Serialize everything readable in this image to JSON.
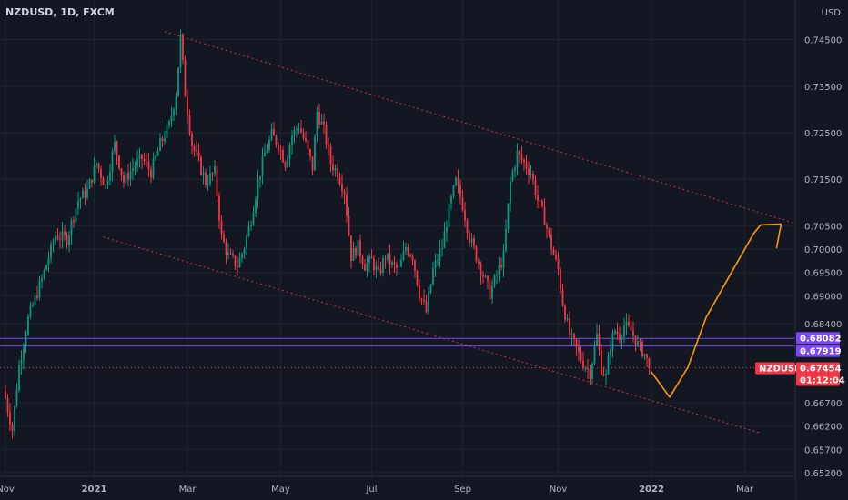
{
  "chart_data": {
    "type": "candlestick",
    "title": "NZDUSD, 1D, FXCM",
    "currency": "USD",
    "x_ticks": [
      {
        "label": "Nov",
        "i": 0
      },
      {
        "label": "2021",
        "i": 39
      },
      {
        "label": "Mar",
        "i": 80
      },
      {
        "label": "May",
        "i": 121
      },
      {
        "label": "Jul",
        "i": 161
      },
      {
        "label": "Sep",
        "i": 201
      },
      {
        "label": "Nov",
        "i": 243
      },
      {
        "label": "2022",
        "i": 284
      },
      {
        "label": "Mar",
        "i": 325
      }
    ],
    "y_ticks": [
      0.745,
      0.735,
      0.725,
      0.715,
      0.705,
      0.7,
      0.695,
      0.69,
      0.684,
      0.667,
      0.662,
      0.657,
      0.652
    ],
    "ylim": [
      0.6512,
      0.7535
    ],
    "x_count": 345,
    "candles_total": 284,
    "last_price": 0.67454,
    "last_label": "NZDUSD",
    "countdown": "01:12:04",
    "lines": [
      {
        "label": "0.68082",
        "value": 0.68082,
        "color": "#7b46f5"
      },
      {
        "label": "0.67919",
        "value": 0.67919,
        "color": "#7b46f5"
      }
    ],
    "channel": [
      {
        "from": [
          70,
          0.7467
        ],
        "to": [
          348,
          0.7054
        ]
      },
      {
        "from": [
          43,
          0.7026
        ],
        "to": [
          332,
          0.6605
        ]
      }
    ],
    "projection": [
      [
        284,
        0.6736
      ],
      [
        292,
        0.6682
      ],
      [
        300,
        0.6746
      ],
      [
        308,
        0.6853
      ],
      [
        318,
        0.694
      ],
      [
        329,
        0.7034
      ],
      [
        332,
        0.7052
      ],
      [
        341,
        0.7054
      ],
      [
        339,
        0.7003
      ]
    ],
    "key_points": [
      [
        0,
        0.668
      ],
      [
        3,
        0.6612
      ],
      [
        6,
        0.675
      ],
      [
        10,
        0.685
      ],
      [
        16,
        0.6935
      ],
      [
        22,
        0.703
      ],
      [
        27,
        0.7022
      ],
      [
        32,
        0.7105
      ],
      [
        36,
        0.7125
      ],
      [
        40,
        0.7185
      ],
      [
        44,
        0.7135
      ],
      [
        48,
        0.7225
      ],
      [
        52,
        0.7145
      ],
      [
        56,
        0.7175
      ],
      [
        60,
        0.7195
      ],
      [
        64,
        0.7165
      ],
      [
        68,
        0.7225
      ],
      [
        72,
        0.7265
      ],
      [
        75,
        0.7335
      ],
      [
        77,
        0.7455
      ],
      [
        79,
        0.7335
      ],
      [
        82,
        0.7225
      ],
      [
        85,
        0.7185
      ],
      [
        88,
        0.7145
      ],
      [
        92,
        0.7165
      ],
      [
        95,
        0.7025
      ],
      [
        98,
        0.6985
      ],
      [
        102,
        0.6965
      ],
      [
        105,
        0.7005
      ],
      [
        108,
        0.7065
      ],
      [
        111,
        0.7145
      ],
      [
        114,
        0.7205
      ],
      [
        117,
        0.7245
      ],
      [
        120,
        0.7225
      ],
      [
        123,
        0.7185
      ],
      [
        126,
        0.7245
      ],
      [
        129,
        0.7265
      ],
      [
        132,
        0.7225
      ],
      [
        135,
        0.7175
      ],
      [
        137,
        0.7295
      ],
      [
        140,
        0.7255
      ],
      [
        143,
        0.7185
      ],
      [
        146,
        0.7165
      ],
      [
        149,
        0.7125
      ],
      [
        152,
        0.6985
      ],
      [
        155,
        0.7005
      ],
      [
        158,
        0.6965
      ],
      [
        161,
        0.6975
      ],
      [
        164,
        0.6945
      ],
      [
        167,
        0.6985
      ],
      [
        170,
        0.6965
      ],
      [
        173,
        0.6955
      ],
      [
        176,
        0.7005
      ],
      [
        179,
        0.6985
      ],
      [
        182,
        0.6905
      ],
      [
        185,
        0.6865
      ],
      [
        188,
        0.6955
      ],
      [
        192,
        0.7005
      ],
      [
        195,
        0.7085
      ],
      [
        198,
        0.7145
      ],
      [
        201,
        0.7095
      ],
      [
        204,
        0.7025
      ],
      [
        207,
        0.6985
      ],
      [
        210,
        0.6945
      ],
      [
        213,
        0.6905
      ],
      [
        216,
        0.6945
      ],
      [
        219,
        0.6985
      ],
      [
        222,
        0.7145
      ],
      [
        225,
        0.7205
      ],
      [
        228,
        0.7185
      ],
      [
        231,
        0.7165
      ],
      [
        234,
        0.7105
      ],
      [
        237,
        0.7065
      ],
      [
        240,
        0.7005
      ],
      [
        243,
        0.6955
      ],
      [
        245,
        0.6885
      ],
      [
        248,
        0.6815
      ],
      [
        251,
        0.6785
      ],
      [
        254,
        0.6755
      ],
      [
        257,
        0.6735
      ],
      [
        260,
        0.6815
      ],
      [
        262,
        0.6745
      ],
      [
        264,
        0.6725
      ],
      [
        266,
        0.6795
      ],
      [
        268,
        0.6825
      ],
      [
        270,
        0.6815
      ],
      [
        272,
        0.6835
      ],
      [
        275,
        0.6825
      ],
      [
        278,
        0.6795
      ],
      [
        281,
        0.6775
      ],
      [
        283,
        0.67454
      ]
    ]
  }
}
